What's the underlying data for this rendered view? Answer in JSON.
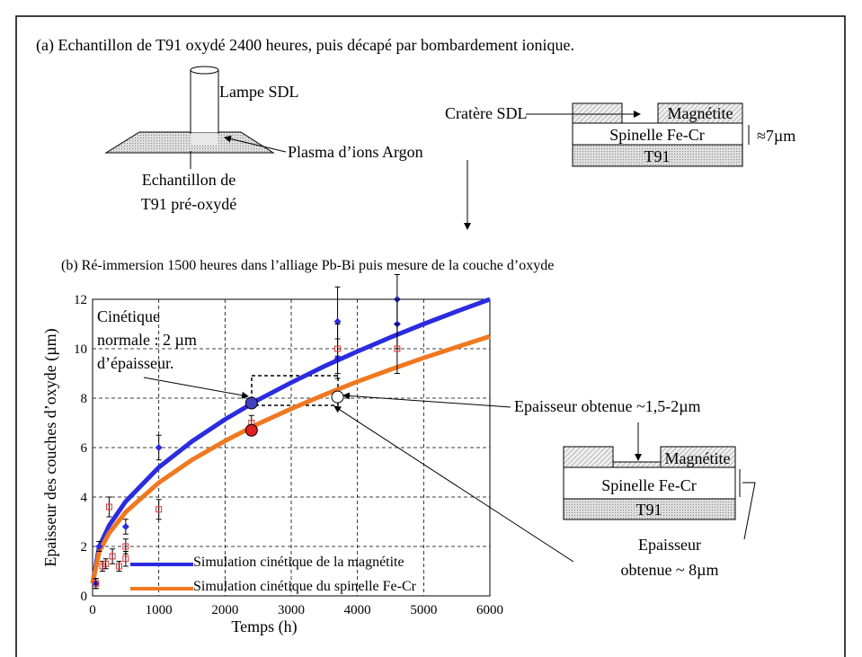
{
  "figure": {
    "panel_a": {
      "title": "(a) Echantillon de T91 oxydé 2400 heures, puis décapé par bombardement ionique.",
      "lamp": "Lampe SDL",
      "plasma": "Plasma d’ions Argon",
      "sample": [
        "Echantillon de",
        "T91 pré-oxydé"
      ],
      "crater": "Cratère SDL",
      "layers": {
        "magnetite": "Magnétite",
        "spinel": "Spinelle Fe-Cr",
        "base": "T91"
      },
      "thickness": "≈7µm"
    },
    "panel_b": {
      "title": "(b) Ré-immersion 1500 heures dans l’alliage Pb-Bi puis mesure de la couche d’oxyde",
      "layers": {
        "magnetite": "Magnétite",
        "spinel": "Spinelle Fe-Cr",
        "base": "T91"
      },
      "thickness": [
        "Epaisseur",
        "obtenue ~ 8µm"
      ]
    }
  },
  "chart_data": {
    "type": "line",
    "x_label": "Temps (h)",
    "y_label": "Epaisseur des couches d’oxyde (µm)",
    "annotations": [
      "Cinétique",
      "normale : 2 µm",
      "d’épaisseur.",
      "Epaisseur obtenue ~1,5-2µm"
    ],
    "xlim": [
      0,
      6000
    ],
    "xticks": [
      0,
      1000,
      2000,
      3000,
      4000,
      5000,
      6000
    ],
    "ylim": [
      0,
      12
    ],
    "yticks": [
      0,
      2,
      4,
      6,
      8,
      10,
      12
    ],
    "grid": true,
    "series": [
      {
        "name": "Simulation cinétique de la magnétite",
        "color": "#2b2be0",
        "mode": "line",
        "x": [
          0,
          100,
          250,
          500,
          1000,
          1500,
          2000,
          2500,
          3000,
          3500,
          4000,
          4500,
          5000,
          5500,
          6000
        ],
        "values": [
          0.5,
          1.99,
          2.85,
          3.82,
          5.2,
          6.25,
          7.14,
          7.93,
          8.63,
          9.29,
          9.89,
          10.46,
          11.0,
          11.51,
          12.0
        ]
      },
      {
        "name": "Simulation cinétique du spinelle Fe-Cr",
        "color": "#f07820",
        "mode": "line",
        "x": [
          0,
          100,
          250,
          500,
          1000,
          1500,
          2000,
          2500,
          3000,
          3500,
          4000,
          4500,
          5000,
          5500,
          6000
        ],
        "values": [
          0.5,
          1.79,
          2.54,
          3.39,
          4.58,
          5.5,
          6.27,
          6.96,
          7.57,
          8.14,
          8.67,
          9.16,
          9.63,
          10.07,
          10.5
        ]
      },
      {
        "color": "#2b2be0",
        "mode": "markers",
        "marker": "diamond",
        "x": [
          50,
          100,
          500,
          1000,
          3700,
          3700,
          4600,
          4600
        ],
        "values": [
          0.5,
          2,
          2.8,
          6,
          11.1,
          9.6,
          12,
          11
        ],
        "errors": [
          0.2,
          0.2,
          0.3,
          0.5,
          1.4,
          0.8,
          1,
          1
        ]
      },
      {
        "color": "#e03030",
        "mode": "markers",
        "marker": "square",
        "x": [
          50,
          150,
          200,
          250,
          300,
          400,
          500,
          500,
          1000,
          2400,
          3700,
          4600
        ],
        "values": [
          0.5,
          1.2,
          1.3,
          3.6,
          1.6,
          1.2,
          2,
          1.5,
          3.5,
          7,
          10,
          10
        ],
        "errors": [
          0.2,
          0.2,
          0.2,
          0.4,
          0.3,
          0.2,
          0.3,
          0.3,
          0.4,
          0.3,
          1,
          1
        ]
      },
      {
        "color": "#4040c0",
        "mode": "markers",
        "marker": "circle",
        "x": [
          2400
        ],
        "values": [
          7.8
        ]
      },
      {
        "color": "#e02020",
        "mode": "markers",
        "marker": "circle",
        "x": [
          2400
        ],
        "values": [
          6.7
        ]
      },
      {
        "color": "#ffffff",
        "mode": "markers",
        "marker": "circle",
        "x": [
          3700
        ],
        "values": [
          8.05
        ]
      }
    ]
  }
}
